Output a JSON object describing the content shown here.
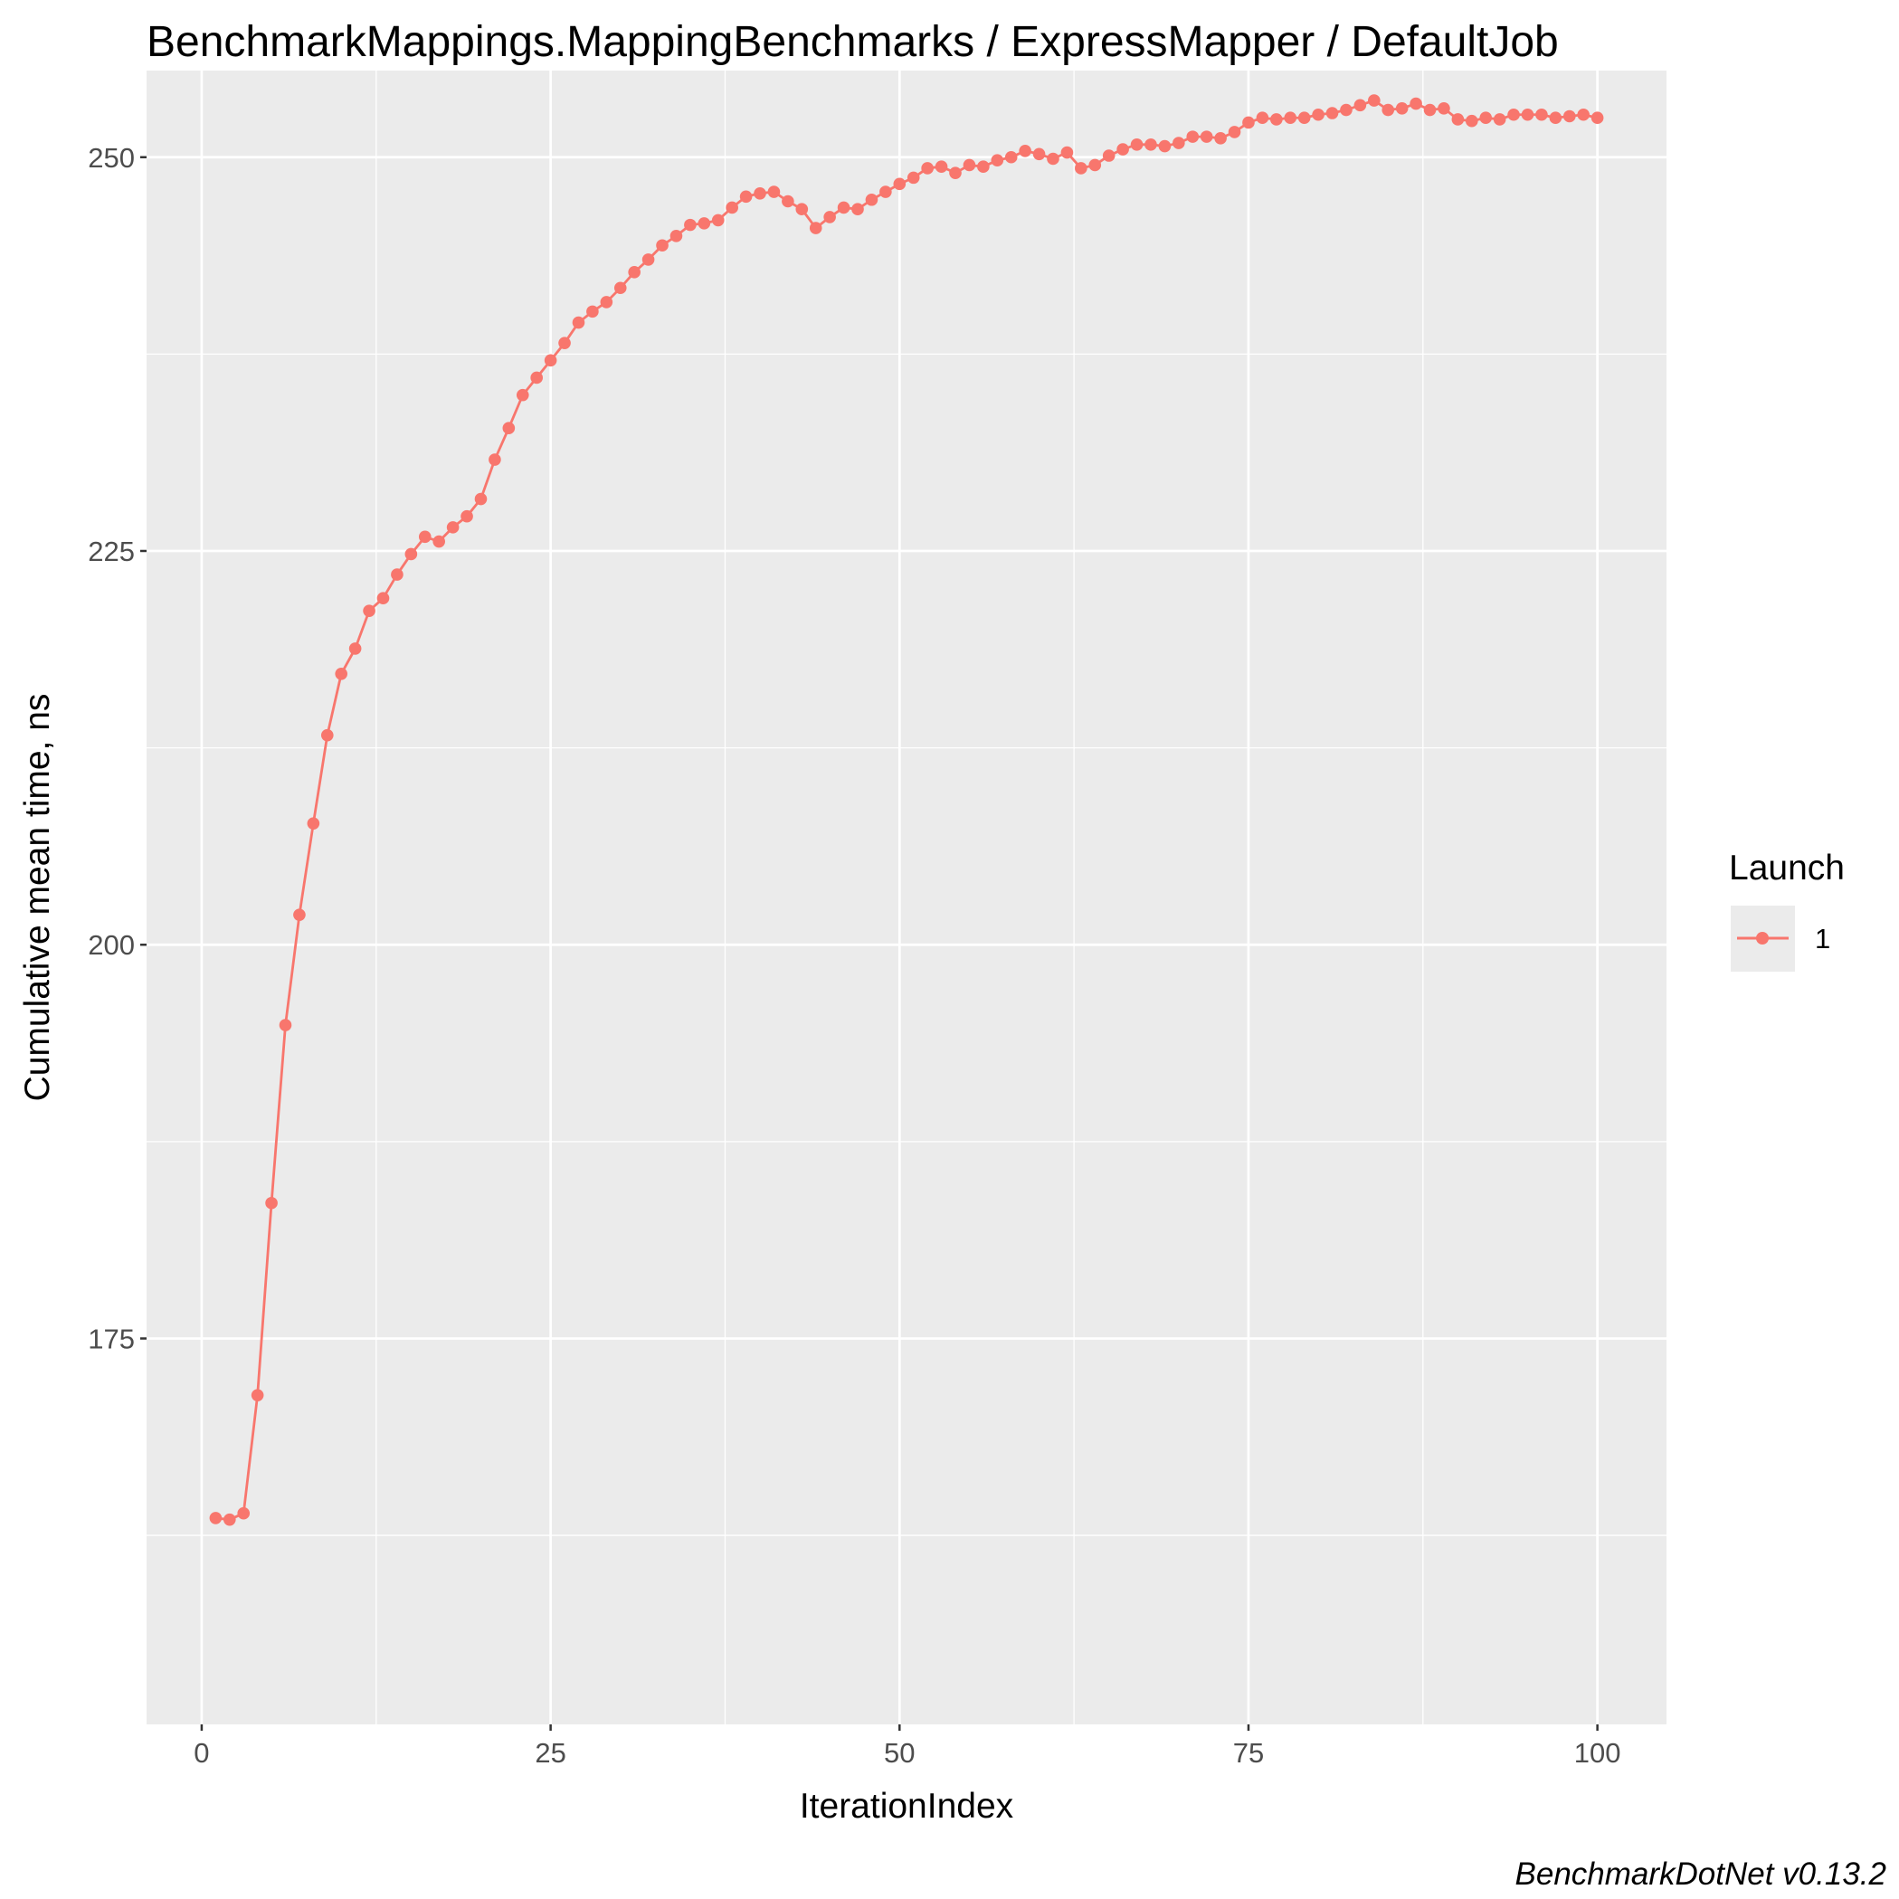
{
  "chart_data": {
    "type": "line",
    "title": "BenchmarkMappings.MappingBenchmarks / ExpressMapper / DefaultJob",
    "xlabel": "IterationIndex",
    "ylabel": "Cumulative mean time, ns",
    "caption": "BenchmarkDotNet v0.13.2",
    "xlim": [
      -3.95,
      104.95
    ],
    "ylim": [
      150.5,
      255.5
    ],
    "x_ticks": [
      0,
      25,
      50,
      75,
      100
    ],
    "x_tick_labels": [
      "0",
      "25",
      "50",
      "75",
      "100"
    ],
    "y_ticks": [
      175,
      200,
      225,
      250
    ],
    "y_tick_labels": [
      "175",
      "200",
      "225",
      "250"
    ],
    "x_minor_ticks": [
      12.5,
      37.5,
      62.5,
      87.5
    ],
    "y_minor_ticks": [
      162.5,
      187.5,
      212.5,
      237.5
    ],
    "grid": true,
    "background": "#ebebeb",
    "legend": {
      "title": "Launch",
      "position": "right",
      "entries": [
        "1"
      ]
    },
    "series": [
      {
        "name": "1",
        "color": "#f8766d",
        "x": [
          1,
          2,
          3,
          4,
          5,
          6,
          7,
          8,
          9,
          10,
          11,
          12,
          13,
          14,
          15,
          16,
          17,
          18,
          19,
          20,
          21,
          22,
          23,
          24,
          25,
          26,
          27,
          28,
          29,
          30,
          31,
          32,
          33,
          34,
          35,
          36,
          37,
          38,
          39,
          40,
          41,
          42,
          43,
          44,
          45,
          46,
          47,
          48,
          49,
          50,
          51,
          52,
          53,
          54,
          55,
          56,
          57,
          58,
          59,
          60,
          61,
          62,
          63,
          64,
          65,
          66,
          67,
          68,
          69,
          70,
          71,
          72,
          73,
          74,
          75,
          76,
          77,
          78,
          79,
          80,
          81,
          82,
          83,
          84,
          85,
          86,
          87,
          88,
          89,
          90,
          91,
          92,
          93,
          94,
          95,
          96,
          97,
          98,
          99,
          100
        ],
        "values": [
          163.6,
          163.5,
          163.9,
          171.4,
          183.6,
          194.9,
          201.9,
          207.7,
          213.3,
          217.2,
          218.8,
          221.2,
          222.0,
          223.5,
          224.8,
          225.9,
          225.6,
          226.5,
          227.2,
          228.3,
          230.8,
          232.8,
          234.9,
          236.0,
          237.1,
          238.2,
          239.5,
          240.2,
          240.8,
          241.7,
          242.7,
          243.5,
          244.4,
          245.0,
          245.7,
          245.8,
          246.0,
          246.8,
          247.5,
          247.7,
          247.8,
          247.2,
          246.7,
          245.5,
          246.2,
          246.8,
          246.7,
          247.3,
          247.8,
          248.3,
          248.7,
          249.3,
          249.4,
          249.0,
          249.5,
          249.4,
          249.8,
          250.0,
          250.4,
          250.2,
          249.9,
          250.3,
          249.3,
          249.5,
          250.1,
          250.5,
          250.8,
          250.8,
          250.7,
          250.9,
          251.3,
          251.3,
          251.2,
          251.6,
          252.2,
          252.5,
          252.4,
          252.5,
          252.5,
          252.7,
          252.8,
          253.0,
          253.3,
          253.6,
          253.0,
          253.1,
          253.4,
          253.0,
          253.1,
          252.4,
          252.3,
          252.5,
          252.4,
          252.7,
          252.7,
          252.7,
          252.5,
          252.6,
          252.7,
          252.5
        ]
      }
    ]
  }
}
